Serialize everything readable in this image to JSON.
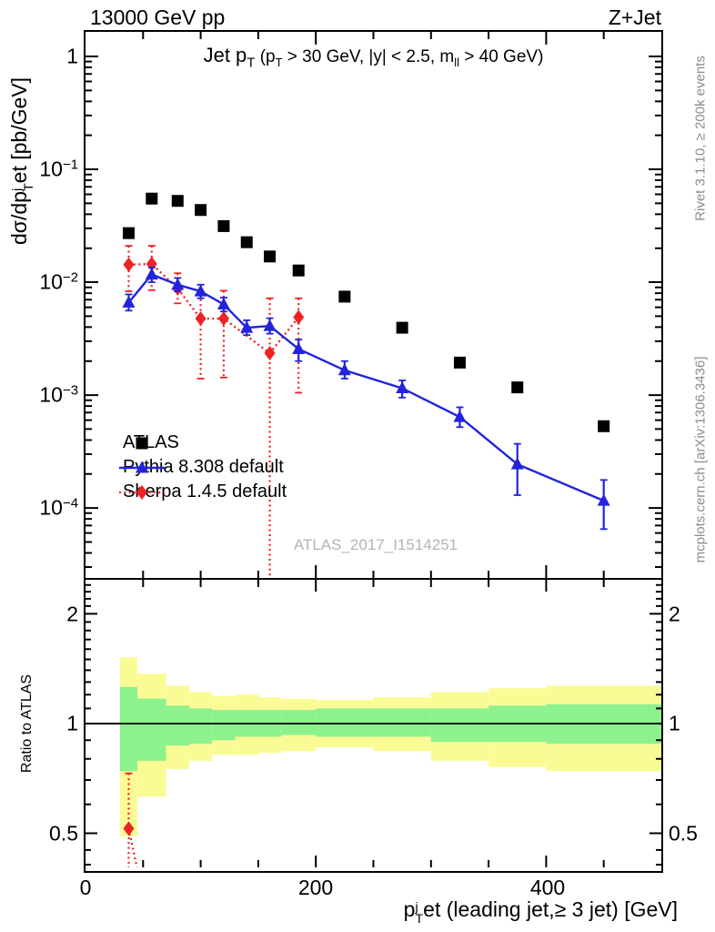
{
  "header": {
    "left": "13000 GeV pp",
    "right": "Z+Jet"
  },
  "labels": {
    "title": {
      "p1": "Jet p",
      "s1": "T",
      "p2": " (p",
      "s2": "T",
      "p3": " > 30 GeV, |y| < 2.5, m",
      "s3": "ll",
      "p4": " > 40 GeV)"
    },
    "ylabel": {
      "p1": "dσ/dp",
      "sup": "j",
      "sub": "T",
      "p2": "et [pb/GeV]"
    },
    "xlabel": {
      "p1": "p",
      "sup": "j",
      "sub": "T",
      "p2": "et (leading jet,≥ 3 jet) [GeV]"
    },
    "ratio_ylabel": "Ratio to ATLAS",
    "watermark": "ATLAS_2017_I1514251",
    "side_top": "Rivet 3.1.10, ≥ 200k events",
    "side_bottom": "mcplots.cern.ch [arXiv:1306.3436]"
  },
  "legend": {
    "atlas": "ATLAS",
    "pythia": "Pythia 8.308 default",
    "sherpa": "Sherpa 1.4.5 default"
  },
  "axis_ticks": {
    "x": [
      "0",
      "200",
      "400"
    ],
    "y": [
      {
        "m": "1",
        "e": ""
      },
      {
        "m": "10",
        "e": "−1"
      },
      {
        "m": "10",
        "e": "−2"
      },
      {
        "m": "10",
        "e": "−3"
      },
      {
        "m": "10",
        "e": "−4"
      }
    ],
    "ratio_left": [
      "2",
      "1",
      "0.5"
    ],
    "ratio_right": [
      "2",
      "1",
      "0.5"
    ]
  },
  "colors": {
    "atlas": "#000000",
    "pythia": "#2323dd",
    "sherpa": "#ee2222",
    "band_green": "#8df28d",
    "band_yellow": "#fbfb96",
    "ref_line": "#000000"
  },
  "chart_data": [
    {
      "type": "scatter",
      "title": "Jet pT (pT > 30 GeV, |y| < 2.5, mll > 40 GeV)",
      "xlabel": "pT^jet (leading jet, >= 3 jet) [GeV]",
      "ylabel": "dsigma/dpT^jet [pb/GeV]",
      "xlim": [
        0,
        500
      ],
      "ylim": [
        2.4e-05,
        1.65
      ],
      "yscale": "log",
      "legend_position": "lower-left-inside",
      "grid": false,
      "series": [
        {
          "name": "ATLAS",
          "marker": "square",
          "color": "#000000",
          "line": "none",
          "x": [
            37.5,
            57.5,
            80,
            100,
            120,
            140,
            160,
            185,
            225,
            275,
            325,
            375,
            450
          ],
          "y": [
            0.0272,
            0.055,
            0.0525,
            0.0436,
            0.0314,
            0.0226,
            0.0169,
            0.0127,
            0.00745,
            0.00395,
            0.00194,
            0.00117,
            0.00053
          ]
        },
        {
          "name": "Pythia 8.308 default",
          "marker": "triangle",
          "color": "#2323dd",
          "line": "solid",
          "x": [
            37.5,
            57.5,
            80,
            100,
            120,
            140,
            160,
            185,
            225,
            275,
            325,
            375,
            450
          ],
          "y": [
            0.0066,
            0.0117,
            0.0095,
            0.0083,
            0.00635,
            0.00395,
            0.0041,
            0.00256,
            0.00166,
            0.00115,
            0.00064,
            0.000244,
            0.000116
          ],
          "err_lo": [
            0.0056,
            0.01,
            0.0083,
            0.0072,
            0.0055,
            0.0034,
            0.0035,
            0.002,
            0.0014,
            0.00095,
            0.00052,
            0.00013,
            6.5e-05
          ],
          "err_hi": [
            0.0078,
            0.0135,
            0.0109,
            0.0095,
            0.0073,
            0.0046,
            0.0048,
            0.0031,
            0.002,
            0.00135,
            0.00078,
            0.00037,
            0.000177
          ]
        },
        {
          "name": "Sherpa 1.4.5 default",
          "marker": "diamond",
          "color": "#ee2222",
          "line": "dotted",
          "x": [
            37.5,
            57.5,
            80,
            100,
            120,
            160,
            185
          ],
          "y": [
            0.0143,
            0.0145,
            0.0088,
            0.00476,
            0.00476,
            0.00235,
            0.0049
          ],
          "err_lo": [
            0.0083,
            0.0085,
            0.0065,
            0.0014,
            0.00143,
            2.2e-05,
            0.00105
          ],
          "err_hi": [
            0.021,
            0.021,
            0.012,
            0.0078,
            0.0084,
            0.0072,
            0.0072
          ]
        }
      ]
    },
    {
      "type": "ratio-bands",
      "ylabel": "Ratio to ATLAS",
      "xlim": [
        0,
        500
      ],
      "ylim": [
        0.403,
        2.48
      ],
      "yscale": "log",
      "reference_line": 1,
      "bin_edges": [
        30,
        45,
        70,
        90,
        110,
        130,
        150,
        170,
        200,
        250,
        300,
        350,
        400,
        500
      ],
      "yellow_band": {
        "hi": [
          1.52,
          1.37,
          1.27,
          1.22,
          1.19,
          1.2,
          1.18,
          1.17,
          1.16,
          1.18,
          1.22,
          1.25,
          1.27
        ],
        "lo": [
          0.49,
          0.63,
          0.75,
          0.79,
          0.82,
          0.82,
          0.83,
          0.84,
          0.86,
          0.84,
          0.79,
          0.76,
          0.74
        ]
      },
      "green_band": {
        "hi": [
          1.26,
          1.17,
          1.12,
          1.1,
          1.09,
          1.09,
          1.09,
          1.09,
          1.1,
          1.1,
          1.1,
          1.12,
          1.13
        ],
        "lo": [
          0.74,
          0.79,
          0.87,
          0.88,
          0.9,
          0.92,
          0.92,
          0.93,
          0.92,
          0.92,
          0.89,
          0.89,
          0.88
        ]
      },
      "series": [
        {
          "name": "Sherpa 1.4.5 default",
          "marker": "diamond",
          "color": "#ee2222",
          "line": "dotted",
          "x": [
            37.5
          ],
          "y": [
            0.515
          ],
          "err_lo": [
            0.28
          ],
          "err_hi": [
            0.73
          ],
          "offscale_next_point": {
            "x": 57.5,
            "y": 0.26
          }
        }
      ]
    }
  ]
}
